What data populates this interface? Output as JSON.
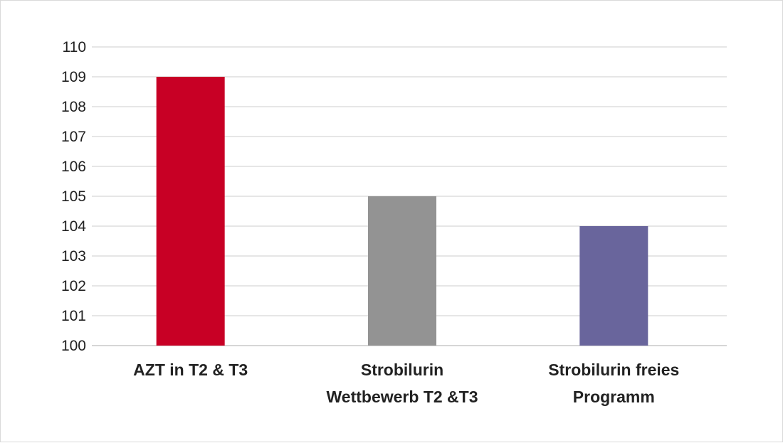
{
  "chart_data": {
    "type": "bar",
    "title": "",
    "xlabel": "",
    "ylabel": "",
    "categories": [
      [
        "AZT in T2 & T3"
      ],
      [
        "Strobilurin",
        "Wettbewerb T2 &T3"
      ],
      [
        "Strobilurin freies",
        "Programm"
      ]
    ],
    "values": [
      109,
      105,
      104
    ],
    "colors": [
      "#c80025",
      "#939393",
      "#69659c"
    ],
    "ylim": [
      100,
      110
    ],
    "yticks": [
      100,
      101,
      102,
      103,
      104,
      105,
      106,
      107,
      108,
      109,
      110
    ],
    "grid": true,
    "legend": "none"
  }
}
